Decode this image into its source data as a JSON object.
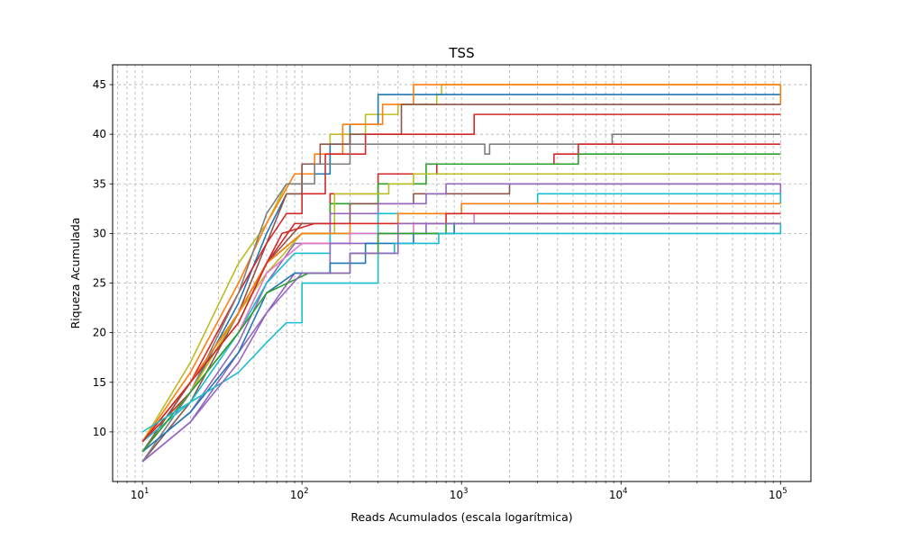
{
  "chart_data": {
    "type": "line",
    "title": "TSS",
    "xlabel": "Reads Acumulados (escala logarítmica)",
    "ylabel": "Riqueza Acumulada",
    "xscale": "log",
    "xlim": [
      6.5,
      155000
    ],
    "ylim": [
      5,
      47
    ],
    "x_ticks": [
      10,
      100,
      1000,
      10000,
      100000
    ],
    "x_tick_labels": [
      {
        "base": "10",
        "exp": "1"
      },
      {
        "base": "10",
        "exp": "2"
      },
      {
        "base": "10",
        "exp": "3"
      },
      {
        "base": "10",
        "exp": "4"
      },
      {
        "base": "10",
        "exp": "5"
      }
    ],
    "y_ticks": [
      10,
      15,
      20,
      25,
      30,
      35,
      40,
      45
    ],
    "grid": true,
    "grid_style": "dashed",
    "series": [
      {
        "color": "#bcbd22",
        "points": [
          [
            10,
            9
          ],
          [
            20,
            17
          ],
          [
            40,
            27
          ],
          [
            60,
            31
          ],
          [
            80,
            35
          ],
          [
            100,
            37
          ],
          [
            150,
            40
          ],
          [
            250,
            42
          ],
          [
            400,
            43
          ],
          [
            700,
            44
          ],
          [
            750,
            45
          ],
          [
            100000,
            45
          ]
        ]
      },
      {
        "color": "#1f77b4",
        "points": [
          [
            10,
            8
          ],
          [
            20,
            14
          ],
          [
            40,
            23
          ],
          [
            60,
            30
          ],
          [
            80,
            34
          ],
          [
            100,
            36
          ],
          [
            150,
            39
          ],
          [
            200,
            41
          ],
          [
            300,
            44
          ],
          [
            6800,
            44
          ],
          [
            6800,
            44
          ],
          [
            100000,
            44
          ]
        ]
      },
      {
        "color": "#ff7f0e",
        "points": [
          [
            10,
            9
          ],
          [
            20,
            16
          ],
          [
            40,
            25
          ],
          [
            60,
            31
          ],
          [
            90,
            36
          ],
          [
            120,
            38
          ],
          [
            180,
            41
          ],
          [
            320,
            43
          ],
          [
            500,
            45
          ],
          [
            100000,
            43
          ]
        ]
      },
      {
        "color": "#8c564b",
        "points": [
          [
            10,
            7
          ],
          [
            20,
            13
          ],
          [
            40,
            22
          ],
          [
            60,
            29
          ],
          [
            80,
            34
          ],
          [
            100,
            37
          ],
          [
            130,
            39
          ],
          [
            200,
            40
          ],
          [
            420,
            43
          ],
          [
            100000,
            43
          ]
        ]
      },
      {
        "color": "#d62728",
        "points": [
          [
            10,
            9
          ],
          [
            20,
            15
          ],
          [
            40,
            24
          ],
          [
            60,
            29
          ],
          [
            80,
            32
          ],
          [
            100,
            34
          ],
          [
            140,
            38
          ],
          [
            250,
            40
          ],
          [
            1200,
            42
          ],
          [
            100000,
            42
          ]
        ]
      },
      {
        "color": "#7f7f7f",
        "points": [
          [
            10,
            7
          ],
          [
            20,
            14
          ],
          [
            40,
            24
          ],
          [
            60,
            32
          ],
          [
            80,
            35
          ],
          [
            120,
            37
          ],
          [
            200,
            39
          ],
          [
            1400,
            38
          ],
          [
            1500,
            39
          ],
          [
            8500,
            39
          ],
          [
            8800,
            40
          ],
          [
            100000,
            40
          ]
        ]
      },
      {
        "color": "#d62728",
        "points": [
          [
            10,
            9
          ],
          [
            20,
            14
          ],
          [
            40,
            22
          ],
          [
            60,
            27
          ],
          [
            90,
            31
          ],
          [
            150,
            34
          ],
          [
            300,
            36
          ],
          [
            700,
            37
          ],
          [
            3800,
            38
          ],
          [
            5400,
            39
          ],
          [
            100000,
            39
          ]
        ]
      },
      {
        "color": "#2ca02c",
        "points": [
          [
            10,
            8
          ],
          [
            20,
            15
          ],
          [
            40,
            21
          ],
          [
            60,
            27
          ],
          [
            100,
            30
          ],
          [
            150,
            33
          ],
          [
            300,
            35
          ],
          [
            600,
            37
          ],
          [
            1600,
            37
          ],
          [
            5400,
            38
          ],
          [
            100000,
            38
          ]
        ]
      },
      {
        "color": "#bcbd22",
        "points": [
          [
            10,
            8
          ],
          [
            20,
            14
          ],
          [
            40,
            22
          ],
          [
            60,
            26
          ],
          [
            100,
            30
          ],
          [
            160,
            34
          ],
          [
            350,
            35
          ],
          [
            500,
            36
          ],
          [
            100000,
            36
          ]
        ]
      },
      {
        "color": "#8c564b",
        "points": [
          [
            10,
            8
          ],
          [
            20,
            15
          ],
          [
            40,
            22
          ],
          [
            60,
            27
          ],
          [
            100,
            31
          ],
          [
            200,
            33
          ],
          [
            500,
            34
          ],
          [
            2000,
            35
          ],
          [
            100000,
            35
          ]
        ]
      },
      {
        "color": "#9467bd",
        "points": [
          [
            10,
            8
          ],
          [
            20,
            12
          ],
          [
            40,
            19
          ],
          [
            60,
            25
          ],
          [
            90,
            29
          ],
          [
            150,
            32
          ],
          [
            300,
            33
          ],
          [
            600,
            34
          ],
          [
            800,
            35
          ],
          [
            100000,
            34
          ]
        ]
      },
      {
        "color": "#17becf",
        "points": [
          [
            10,
            9
          ],
          [
            20,
            13
          ],
          [
            40,
            20
          ],
          [
            60,
            25
          ],
          [
            90,
            28
          ],
          [
            150,
            30
          ],
          [
            300,
            32
          ],
          [
            1000,
            33
          ],
          [
            3000,
            34
          ],
          [
            100000,
            33
          ]
        ]
      },
      {
        "color": "#ff7f0e",
        "points": [
          [
            10,
            9
          ],
          [
            20,
            15
          ],
          [
            40,
            22
          ],
          [
            60,
            27
          ],
          [
            100,
            30
          ],
          [
            200,
            31
          ],
          [
            400,
            32
          ],
          [
            1000,
            33
          ],
          [
            2400,
            33
          ],
          [
            100000,
            33
          ]
        ]
      },
      {
        "color": "#e377c2",
        "points": [
          [
            10,
            8
          ],
          [
            20,
            14
          ],
          [
            40,
            20
          ],
          [
            60,
            26
          ],
          [
            100,
            29
          ],
          [
            200,
            30
          ],
          [
            500,
            31
          ],
          [
            1200,
            32
          ],
          [
            80000,
            32
          ],
          [
            100000,
            32
          ]
        ]
      },
      {
        "color": "#d62728",
        "points": [
          [
            10,
            9
          ],
          [
            20,
            15
          ],
          [
            40,
            21
          ],
          [
            60,
            27
          ],
          [
            75,
            30
          ],
          [
            120,
            31
          ],
          [
            300,
            31
          ],
          [
            700,
            31
          ],
          [
            800,
            32
          ],
          [
            100000,
            32
          ]
        ]
      },
      {
        "color": "#9467bd",
        "points": [
          [
            10,
            7
          ],
          [
            20,
            11
          ],
          [
            40,
            18
          ],
          [
            60,
            22
          ],
          [
            90,
            26
          ],
          [
            150,
            29
          ],
          [
            300,
            30
          ],
          [
            600,
            31
          ],
          [
            100000,
            31
          ]
        ]
      },
      {
        "color": "#1f77b4",
        "points": [
          [
            10,
            8
          ],
          [
            20,
            12
          ],
          [
            40,
            18
          ],
          [
            60,
            24
          ],
          [
            90,
            26
          ],
          [
            150,
            27
          ],
          [
            250,
            29
          ],
          [
            500,
            30
          ],
          [
            900,
            31
          ],
          [
            100000,
            31
          ]
        ]
      },
      {
        "color": "#2ca02c",
        "points": [
          [
            10,
            8
          ],
          [
            20,
            14
          ],
          [
            40,
            20
          ],
          [
            60,
            24
          ],
          [
            110,
            26
          ],
          [
            200,
            28
          ],
          [
            300,
            30
          ],
          [
            800,
            31
          ],
          [
            100000,
            31
          ]
        ]
      },
      {
        "color": "#17becf",
        "points": [
          [
            10,
            10
          ],
          [
            20,
            13
          ],
          [
            40,
            16
          ],
          [
            60,
            19
          ],
          [
            80,
            21
          ],
          [
            100,
            25
          ],
          [
            250,
            25
          ],
          [
            300,
            28
          ],
          [
            380,
            29
          ],
          [
            720,
            30
          ],
          [
            100000,
            31
          ]
        ]
      },
      {
        "color": "#9467bd",
        "points": [
          [
            10,
            7
          ],
          [
            20,
            11
          ],
          [
            40,
            17
          ],
          [
            60,
            22
          ],
          [
            100,
            26
          ],
          [
            200,
            28
          ],
          [
            400,
            31
          ],
          [
            1000,
            31
          ],
          [
            100000,
            31
          ]
        ]
      }
    ]
  }
}
